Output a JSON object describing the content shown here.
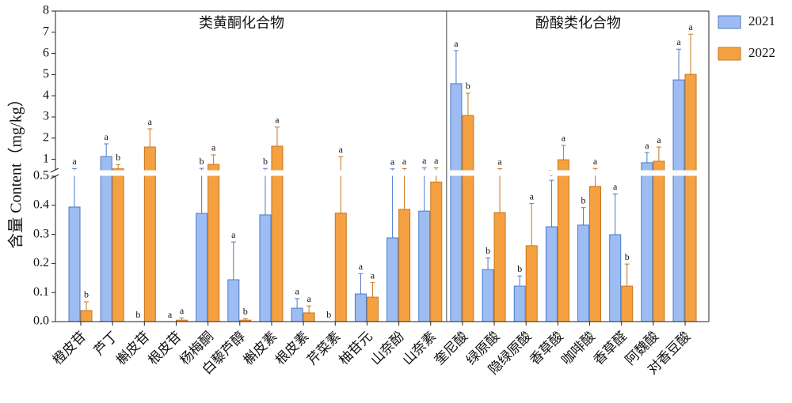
{
  "chart_data": {
    "type": "bar",
    "y_label": "含量 Content（mg/kg）",
    "section_labels": [
      "类黄酮化合物",
      "酚酸类化合物"
    ],
    "categories": [
      "橙皮苷",
      "芦丁",
      "槲皮苷",
      "根皮苷",
      "杨梅酮",
      "白藜芦醇",
      "槲皮素",
      "根皮素",
      "芹菜素",
      "柚苷元",
      "山奈酚",
      "山奈素",
      "奎尼酸",
      "绿原酸",
      "隐绿原酸",
      "香草酸",
      "咖啡酸",
      "香草醛",
      "阿魏酸",
      "对香豆酸"
    ],
    "y_segments": [
      {
        "ylim": [
          0,
          0.5
        ],
        "yticks": [
          {
            "value": 0,
            "label": "0.0"
          },
          0.1,
          0.2,
          0.3,
          0.4,
          0.5
        ]
      },
      {
        "ylim": [
          0.5,
          8
        ],
        "yticks": [
          1,
          2,
          3,
          4,
          5,
          6,
          7,
          8
        ]
      }
    ],
    "series": [
      {
        "name": "2021",
        "color": "#9dbdf2",
        "edge": "#4a78c8",
        "values": [
          0.394,
          1.13,
          0,
          0,
          0.372,
          0.144,
          0.367,
          0.046,
          0,
          0.095,
          0.288,
          0.38,
          4.57,
          0.179,
          0.122,
          0.326,
          0.332,
          0.299,
          0.84,
          4.75
        ],
        "errors": [
          0.17,
          0.6,
          0,
          0,
          0.2,
          0.13,
          0.2,
          0.033,
          0,
          0.07,
          0.26,
          0.22,
          1.56,
          0.04,
          0.035,
          0.16,
          0.06,
          0.14,
          0.48,
          1.45
        ],
        "letters": [
          "a",
          "a",
          "b",
          "a",
          "b",
          "a",
          "b",
          "a",
          "b",
          "a",
          "a",
          "a",
          "a",
          "b",
          "b",
          "b",
          "b",
          "a",
          "a",
          "a"
        ]
      },
      {
        "name": "2022",
        "color": "#f5a142",
        "edge": "#c8741c",
        "values": [
          0.038,
          0.55,
          1.58,
          0.005,
          0.76,
          0.005,
          1.62,
          0.03,
          0.373,
          0.084,
          0.386,
          0.48,
          3.07,
          0.375,
          0.261,
          0.98,
          0.465,
          0.122,
          0.91,
          5.01
        ],
        "errors": [
          0.03,
          0.2,
          0.86,
          0.008,
          0.45,
          0.005,
          0.9,
          0.024,
          0.75,
          0.05,
          0.17,
          0.12,
          1.05,
          0.18,
          0.145,
          0.68,
          0.1,
          0.076,
          0.67,
          1.9
        ],
        "letters": [
          "b",
          "b",
          "a",
          "a",
          "a",
          "b",
          "a",
          "a",
          "a",
          "a",
          "a",
          "a",
          "b",
          "a",
          "a",
          "a",
          "a",
          "b",
          "a",
          "a"
        ]
      }
    ]
  }
}
